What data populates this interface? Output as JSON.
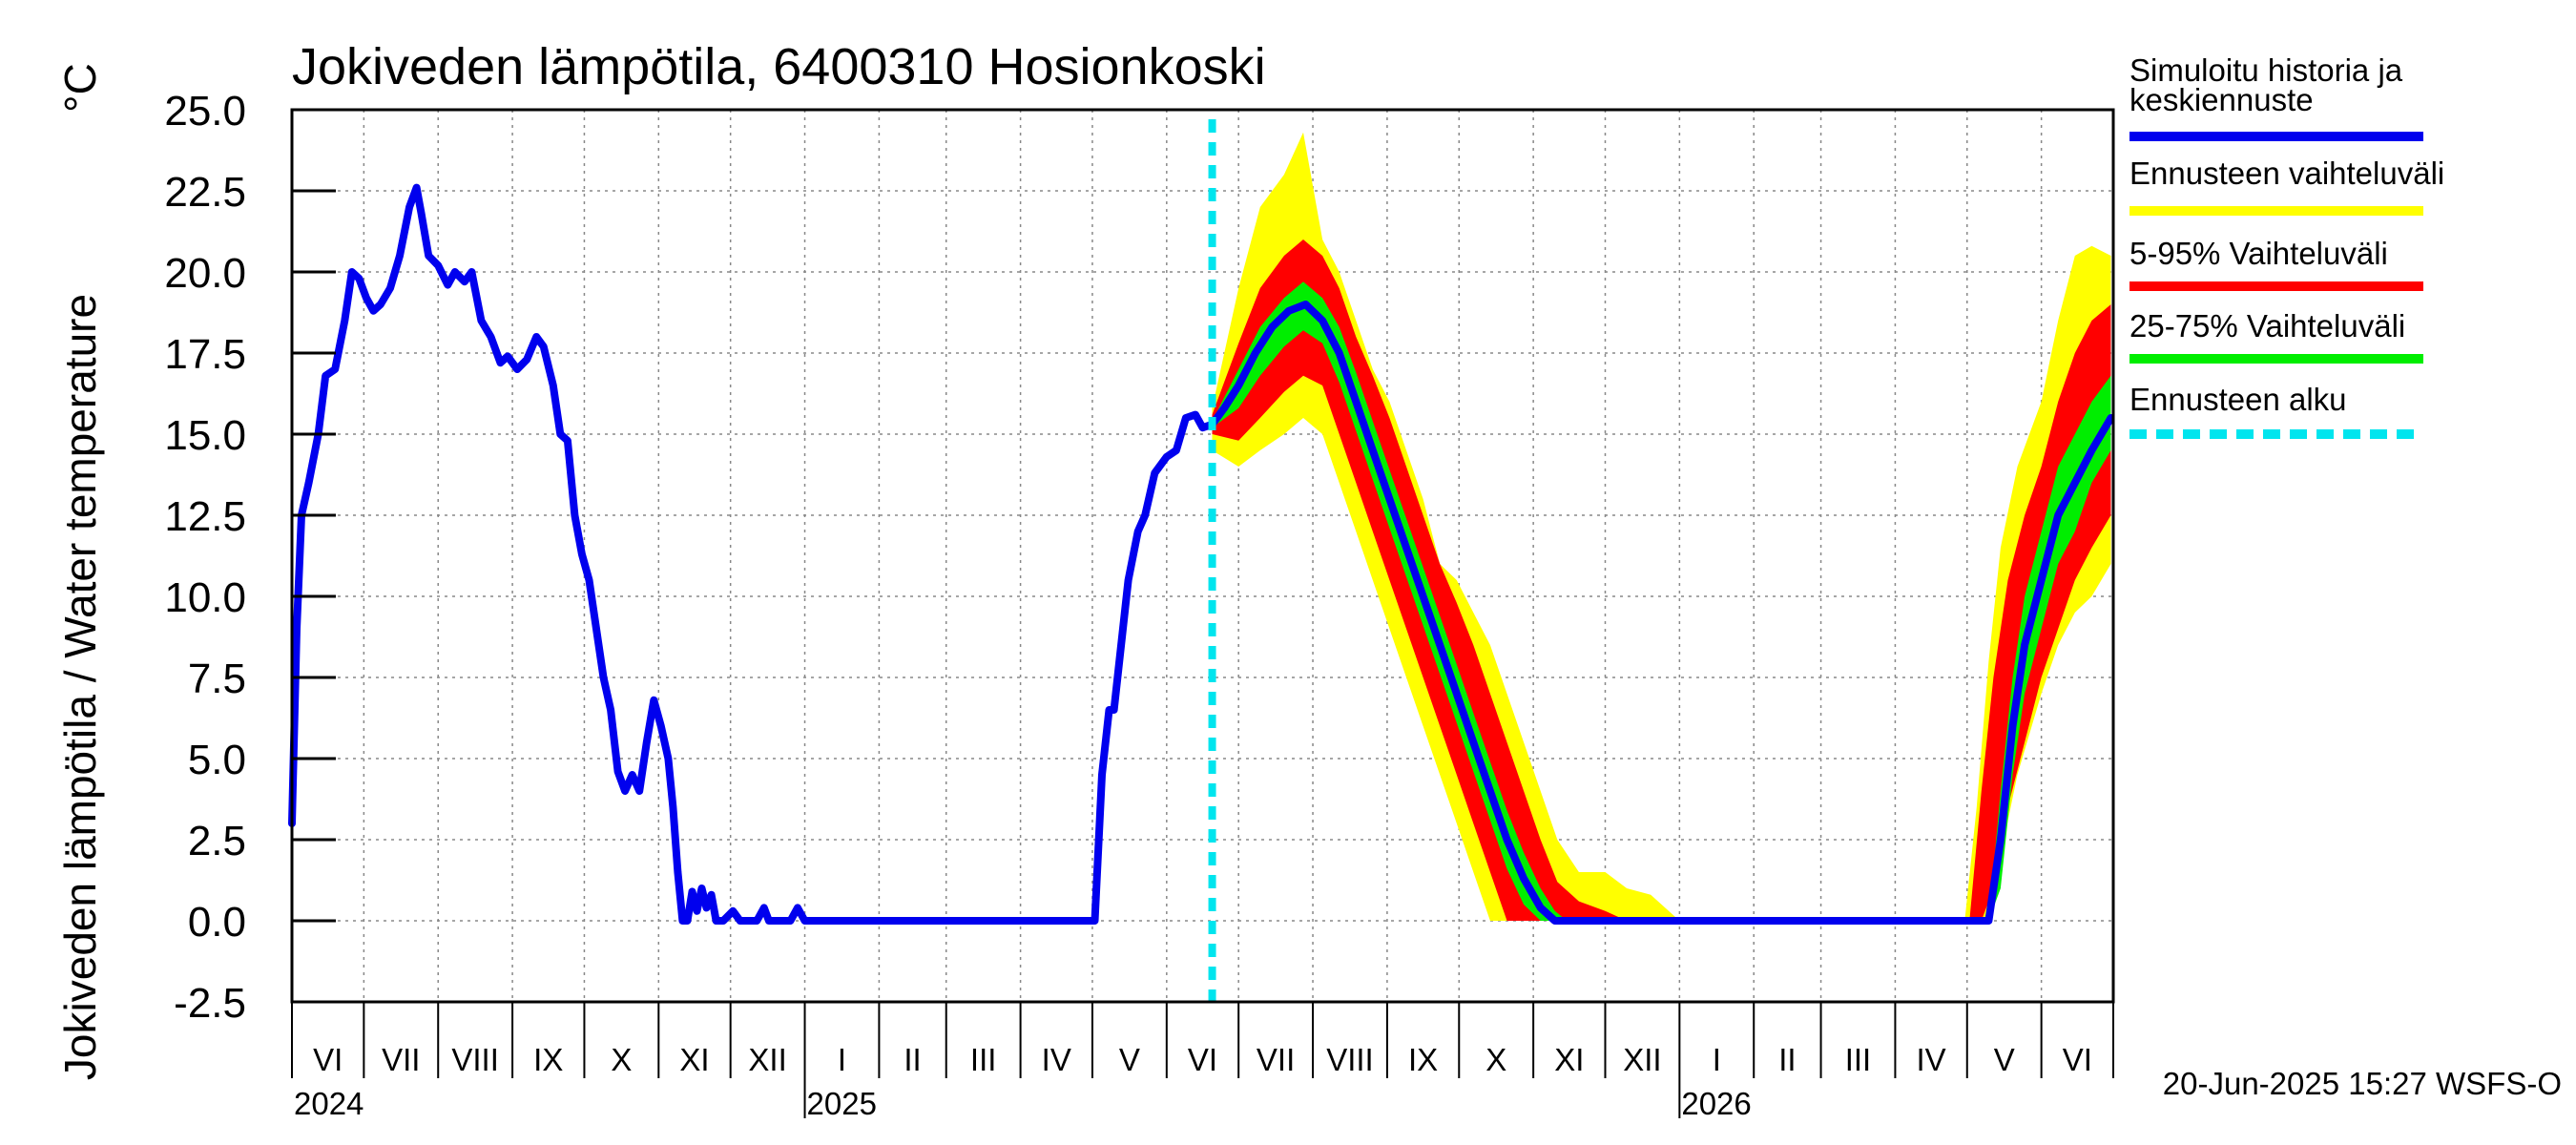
{
  "chart_data": {
    "type": "area",
    "title": "Jokiveden lämpötila, 6400310 Hosionkoski",
    "ylabel": "Jokiveden lämpötila / Water temperature",
    "yunit": "°C",
    "ylim": [
      -2.5,
      25.0
    ],
    "yticks": [
      "25.0",
      "22.5",
      "20.0",
      "17.5",
      "15.0",
      "12.5",
      "10.0",
      "7.5",
      "5.0",
      "2.5",
      "0.0",
      "-2.5"
    ],
    "xlim": [
      "2024-06-01",
      "2026-06-30"
    ],
    "months": [
      "VI",
      "VII",
      "VIII",
      "IX",
      "X",
      "XI",
      "XII",
      "I",
      "II",
      "III",
      "IV",
      "V",
      "VI",
      "VII",
      "VIII",
      "IX",
      "X",
      "XI",
      "XII",
      "I",
      "II",
      "III",
      "IV",
      "V",
      "VI"
    ],
    "years": [
      "2024",
      "2025",
      "2026"
    ],
    "grid": true,
    "forecast_start": "2025-06-20",
    "footer": "20-Jun-2025 15:27 WSFS-O",
    "legend_position": "right",
    "legend": [
      {
        "label": "Simuloitu historia ja keskiennuste",
        "color": "#0000ee",
        "style": "solid"
      },
      {
        "label": "Ennusteen vaihteluväli",
        "color": "#ffff00",
        "style": "solid"
      },
      {
        "label": "5-95% Vaihteluväli",
        "color": "#ff0000",
        "style": "solid"
      },
      {
        "label": "25-75% Vaihteluväli",
        "color": "#00ee00",
        "style": "solid"
      },
      {
        "label": "Ennusteen alku",
        "color": "#00e5ee",
        "style": "dashed"
      }
    ],
    "series": [
      {
        "name": "Simuloitu historia ja keskiennuste",
        "color": "#0000ee",
        "points": [
          [
            "2024-06-01",
            3.0
          ],
          [
            "2024-06-03",
            9.0
          ],
          [
            "2024-06-05",
            12.5
          ],
          [
            "2024-06-08",
            13.5
          ],
          [
            "2024-06-12",
            15.0
          ],
          [
            "2024-06-15",
            16.8
          ],
          [
            "2024-06-19",
            17.0
          ],
          [
            "2024-06-23",
            18.5
          ],
          [
            "2024-06-26",
            20.0
          ],
          [
            "2024-06-29",
            19.8
          ],
          [
            "2024-07-02",
            19.2
          ],
          [
            "2024-07-05",
            18.8
          ],
          [
            "2024-07-08",
            19.0
          ],
          [
            "2024-07-12",
            19.5
          ],
          [
            "2024-07-16",
            20.5
          ],
          [
            "2024-07-20",
            22.0
          ],
          [
            "2024-07-23",
            22.6
          ],
          [
            "2024-07-25",
            21.8
          ],
          [
            "2024-07-28",
            20.5
          ],
          [
            "2024-08-01",
            20.2
          ],
          [
            "2024-08-05",
            19.6
          ],
          [
            "2024-08-08",
            20.0
          ],
          [
            "2024-08-12",
            19.7
          ],
          [
            "2024-08-15",
            20.0
          ],
          [
            "2024-08-19",
            18.5
          ],
          [
            "2024-08-23",
            18.0
          ],
          [
            "2024-08-27",
            17.2
          ],
          [
            "2024-08-30",
            17.4
          ],
          [
            "2024-09-03",
            17.0
          ],
          [
            "2024-09-07",
            17.3
          ],
          [
            "2024-09-11",
            18.0
          ],
          [
            "2024-09-14",
            17.7
          ],
          [
            "2024-09-18",
            16.5
          ],
          [
            "2024-09-21",
            15.0
          ],
          [
            "2024-09-24",
            14.8
          ],
          [
            "2024-09-27",
            12.5
          ],
          [
            "2024-09-30",
            11.3
          ],
          [
            "2024-10-03",
            10.5
          ],
          [
            "2024-10-06",
            9.0
          ],
          [
            "2024-10-09",
            7.5
          ],
          [
            "2024-10-12",
            6.5
          ],
          [
            "2024-10-15",
            4.6
          ],
          [
            "2024-10-18",
            4.0
          ],
          [
            "2024-10-21",
            4.5
          ],
          [
            "2024-10-24",
            4.0
          ],
          [
            "2024-10-27",
            5.5
          ],
          [
            "2024-10-30",
            6.8
          ],
          [
            "2024-11-02",
            6.0
          ],
          [
            "2024-11-05",
            5.0
          ],
          [
            "2024-11-07",
            3.5
          ],
          [
            "2024-11-09",
            1.5
          ],
          [
            "2024-11-11",
            0.0
          ],
          [
            "2024-11-13",
            0.0
          ],
          [
            "2024-11-15",
            0.9
          ],
          [
            "2024-11-17",
            0.3
          ],
          [
            "2024-11-19",
            1.0
          ],
          [
            "2024-11-21",
            0.4
          ],
          [
            "2024-11-23",
            0.8
          ],
          [
            "2024-11-25",
            0.0
          ],
          [
            "2024-11-28",
            0.0
          ],
          [
            "2024-12-02",
            0.3
          ],
          [
            "2024-12-05",
            0.0
          ],
          [
            "2024-12-12",
            0.0
          ],
          [
            "2024-12-15",
            0.4
          ],
          [
            "2024-12-17",
            0.0
          ],
          [
            "2024-12-26",
            0.0
          ],
          [
            "2024-12-29",
            0.4
          ],
          [
            "2025-01-01",
            0.0
          ],
          [
            "2025-05-02",
            0.0
          ],
          [
            "2025-05-05",
            4.5
          ],
          [
            "2025-05-08",
            6.5
          ],
          [
            "2025-05-10",
            6.5
          ],
          [
            "2025-05-13",
            8.5
          ],
          [
            "2025-05-16",
            10.5
          ],
          [
            "2025-05-20",
            12.0
          ],
          [
            "2025-05-23",
            12.5
          ],
          [
            "2025-05-27",
            13.8
          ],
          [
            "2025-06-01",
            14.3
          ],
          [
            "2025-06-05",
            14.5
          ],
          [
            "2025-06-09",
            15.5
          ],
          [
            "2025-06-13",
            15.6
          ],
          [
            "2025-06-16",
            15.2
          ],
          [
            "2025-06-20",
            15.3
          ]
        ]
      },
      {
        "name": "Keskiennuste",
        "color": "#0000ee",
        "points": [
          [
            "2025-06-20",
            15.3
          ],
          [
            "2025-06-25",
            15.8
          ],
          [
            "2025-07-01",
            16.5
          ],
          [
            "2025-07-08",
            17.5
          ],
          [
            "2025-07-15",
            18.3
          ],
          [
            "2025-07-22",
            18.8
          ],
          [
            "2025-07-29",
            19.0
          ],
          [
            "2025-08-05",
            18.5
          ],
          [
            "2025-08-12",
            17.5
          ],
          [
            "2025-08-19",
            16.0
          ],
          [
            "2025-08-26",
            14.5
          ],
          [
            "2025-09-02",
            13.0
          ],
          [
            "2025-09-09",
            11.5
          ],
          [
            "2025-09-16",
            10.0
          ],
          [
            "2025-09-23",
            8.5
          ],
          [
            "2025-09-30",
            7.0
          ],
          [
            "2025-10-07",
            5.5
          ],
          [
            "2025-10-14",
            4.0
          ],
          [
            "2025-10-21",
            2.5
          ],
          [
            "2025-10-28",
            1.3
          ],
          [
            "2025-11-04",
            0.4
          ],
          [
            "2025-11-10",
            0.0
          ],
          [
            "2026-05-10",
            0.0
          ],
          [
            "2026-05-15",
            2.5
          ],
          [
            "2026-05-20",
            6.0
          ],
          [
            "2026-05-25",
            8.5
          ],
          [
            "2026-06-01",
            10.5
          ],
          [
            "2026-06-08",
            12.5
          ],
          [
            "2026-06-15",
            13.5
          ],
          [
            "2026-06-22",
            14.5
          ],
          [
            "2026-06-30",
            15.5
          ]
        ]
      }
    ],
    "bands": [
      {
        "name": "Ennusteen vaihteluväli",
        "color": "#ffff00",
        "points": [
          [
            "2025-06-20",
            14.5,
            15.8
          ],
          [
            "2025-07-01",
            14.0,
            19.5
          ],
          [
            "2025-07-10",
            14.5,
            22.0
          ],
          [
            "2025-07-20",
            15.0,
            23.0
          ],
          [
            "2025-07-28",
            15.5,
            24.3
          ],
          [
            "2025-08-05",
            15.0,
            21.0
          ],
          [
            "2025-08-12",
            13.5,
            20.0
          ],
          [
            "2025-08-19",
            12.0,
            18.5
          ],
          [
            "2025-08-26",
            10.5,
            17.0
          ],
          [
            "2025-09-02",
            9.0,
            16.0
          ],
          [
            "2025-09-09",
            7.5,
            14.5
          ],
          [
            "2025-09-16",
            6.0,
            13.0
          ],
          [
            "2025-09-23",
            4.5,
            11.0
          ],
          [
            "2025-09-30",
            3.0,
            10.5
          ],
          [
            "2025-10-07",
            1.5,
            9.5
          ],
          [
            "2025-10-14",
            0.0,
            8.5
          ],
          [
            "2025-10-21",
            0.0,
            7.0
          ],
          [
            "2025-10-28",
            0.0,
            5.5
          ],
          [
            "2025-11-04",
            0.0,
            4.0
          ],
          [
            "2025-11-11",
            0.0,
            2.5
          ],
          [
            "2025-11-20",
            0.0,
            1.5
          ],
          [
            "2025-12-01",
            0.0,
            1.5
          ],
          [
            "2025-12-10",
            0.0,
            1.0
          ],
          [
            "2025-12-20",
            0.0,
            0.8
          ],
          [
            "2026-01-01",
            0.0,
            0.0
          ],
          [
            "2026-04-30",
            0.0,
            0.0
          ],
          [
            "2026-05-05",
            0.0,
            3.5
          ],
          [
            "2026-05-10",
            0.0,
            8.0
          ],
          [
            "2026-05-15",
            2.0,
            11.5
          ],
          [
            "2026-05-22",
            4.5,
            14.0
          ],
          [
            "2026-06-01",
            7.0,
            16.0
          ],
          [
            "2026-06-08",
            8.5,
            18.5
          ],
          [
            "2026-06-15",
            9.5,
            20.5
          ],
          [
            "2026-06-22",
            10.0,
            20.8
          ],
          [
            "2026-06-30",
            11.0,
            20.5
          ]
        ]
      },
      {
        "name": "5-95% Vaihteluväli",
        "color": "#ff0000",
        "points": [
          [
            "2025-06-20",
            15.0,
            15.6
          ],
          [
            "2025-07-01",
            14.8,
            17.8
          ],
          [
            "2025-07-10",
            15.5,
            19.5
          ],
          [
            "2025-07-20",
            16.3,
            20.5
          ],
          [
            "2025-07-28",
            16.8,
            21.0
          ],
          [
            "2025-08-05",
            16.5,
            20.5
          ],
          [
            "2025-08-12",
            15.0,
            19.5
          ],
          [
            "2025-08-19",
            13.5,
            18.0
          ],
          [
            "2025-08-26",
            12.0,
            16.8
          ],
          [
            "2025-09-02",
            10.5,
            15.5
          ],
          [
            "2025-09-09",
            9.0,
            14.0
          ],
          [
            "2025-09-16",
            7.5,
            12.5
          ],
          [
            "2025-09-23",
            6.0,
            11.0
          ],
          [
            "2025-09-30",
            4.5,
            9.8
          ],
          [
            "2025-10-07",
            3.0,
            8.5
          ],
          [
            "2025-10-14",
            1.5,
            7.0
          ],
          [
            "2025-10-21",
            0.0,
            5.5
          ],
          [
            "2025-10-28",
            0.0,
            4.0
          ],
          [
            "2025-11-04",
            0.0,
            2.5
          ],
          [
            "2025-11-11",
            0.0,
            1.2
          ],
          [
            "2025-11-20",
            0.0,
            0.6
          ],
          [
            "2025-12-01",
            0.0,
            0.3
          ],
          [
            "2025-12-10",
            0.0,
            0.0
          ],
          [
            "2026-05-02",
            0.0,
            0.0
          ],
          [
            "2026-05-07",
            0.0,
            4.0
          ],
          [
            "2026-05-12",
            1.0,
            7.5
          ],
          [
            "2026-05-18",
            3.5,
            10.5
          ],
          [
            "2026-05-25",
            5.5,
            12.5
          ],
          [
            "2026-06-01",
            7.5,
            14.0
          ],
          [
            "2026-06-08",
            9.0,
            16.0
          ],
          [
            "2026-06-15",
            10.5,
            17.5
          ],
          [
            "2026-06-22",
            11.5,
            18.5
          ],
          [
            "2026-06-30",
            12.5,
            19.0
          ]
        ]
      },
      {
        "name": "25-75% Vaihteluväli",
        "color": "#00ee00",
        "points": [
          [
            "2025-06-20",
            15.2,
            15.4
          ],
          [
            "2025-07-01",
            15.8,
            17.0
          ],
          [
            "2025-07-10",
            16.8,
            18.3
          ],
          [
            "2025-07-20",
            17.7,
            19.2
          ],
          [
            "2025-07-28",
            18.2,
            19.7
          ],
          [
            "2025-08-05",
            17.8,
            19.2
          ],
          [
            "2025-08-12",
            16.6,
            18.3
          ],
          [
            "2025-08-19",
            15.1,
            16.9
          ],
          [
            "2025-08-26",
            13.6,
            15.4
          ],
          [
            "2025-09-02",
            12.1,
            13.9
          ],
          [
            "2025-09-09",
            10.6,
            12.4
          ],
          [
            "2025-09-16",
            9.1,
            10.9
          ],
          [
            "2025-09-23",
            7.6,
            9.4
          ],
          [
            "2025-09-30",
            6.1,
            7.9
          ],
          [
            "2025-10-07",
            4.6,
            6.4
          ],
          [
            "2025-10-14",
            3.1,
            4.9
          ],
          [
            "2025-10-21",
            1.6,
            3.4
          ],
          [
            "2025-10-28",
            0.5,
            2.1
          ],
          [
            "2025-11-04",
            0.0,
            1.0
          ],
          [
            "2025-11-10",
            0.0,
            0.3
          ],
          [
            "2025-11-15",
            0.0,
            0.0
          ],
          [
            "2026-05-10",
            0.0,
            0.0
          ],
          [
            "2026-05-15",
            1.0,
            4.0
          ],
          [
            "2026-05-20",
            4.5,
            7.5
          ],
          [
            "2026-05-25",
            7.0,
            10.0
          ],
          [
            "2026-06-01",
            9.0,
            12.0
          ],
          [
            "2026-06-08",
            11.0,
            14.0
          ],
          [
            "2026-06-15",
            12.0,
            15.0
          ],
          [
            "2026-06-22",
            13.5,
            16.0
          ],
          [
            "2026-06-30",
            14.5,
            16.8
          ]
        ]
      }
    ]
  }
}
